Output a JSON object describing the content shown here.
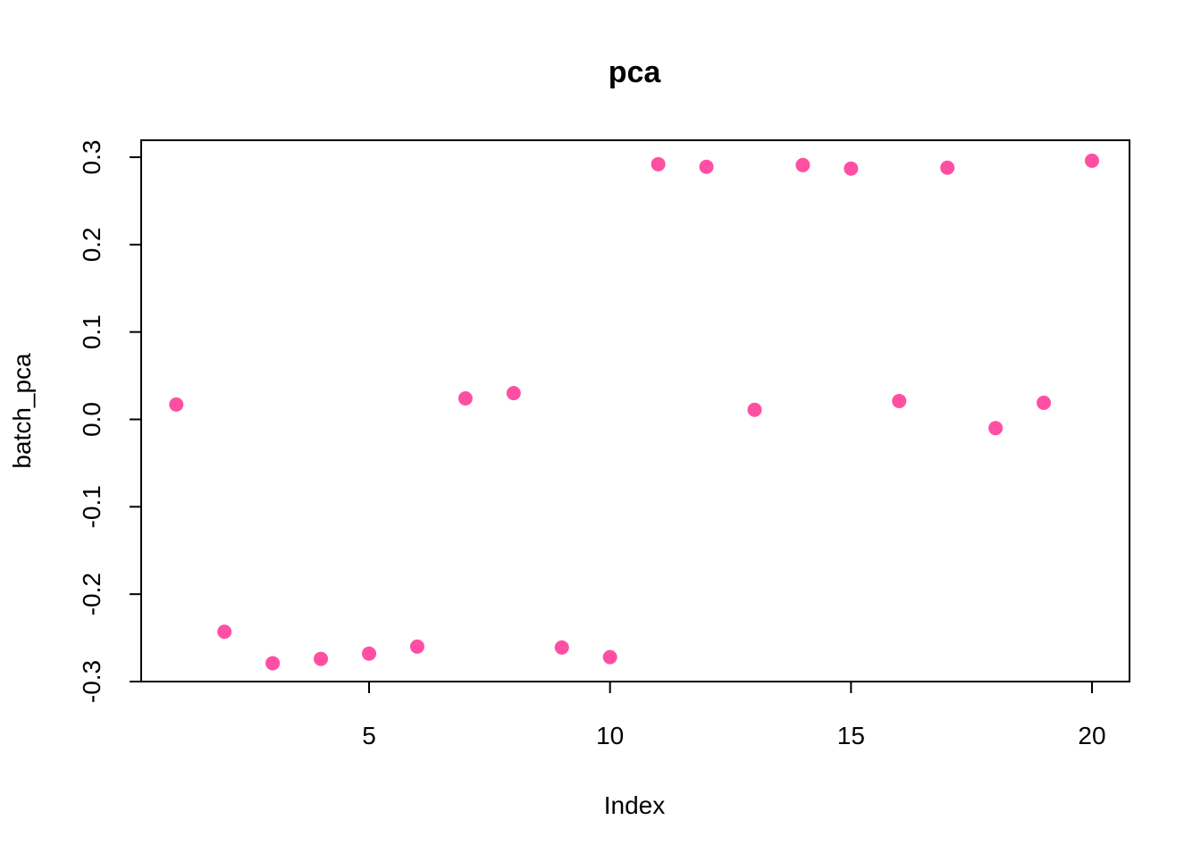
{
  "chart_data": {
    "type": "scatter",
    "title": "pca",
    "xlabel": "Index",
    "ylabel": "batch_pca",
    "xlim": [
      0.25,
      20.75
    ],
    "ylim": [
      -0.3,
      0.32
    ],
    "x_ticks": [
      5,
      10,
      15,
      20
    ],
    "x_tick_labels": [
      "5",
      "10",
      "15",
      "20"
    ],
    "y_ticks": [
      -0.3,
      -0.2,
      -0.1,
      0.0,
      0.1,
      0.2,
      0.3
    ],
    "y_tick_labels": [
      "-0.3",
      "-0.2",
      "-0.1",
      "0.0",
      "0.1",
      "0.2",
      "0.3"
    ],
    "grid": false,
    "legend": "none",
    "point_color": "#FF4FA3",
    "series": [
      {
        "x": [
          1,
          2,
          3,
          4,
          5,
          6,
          7,
          8,
          9,
          10,
          11,
          12,
          13,
          14,
          15,
          16,
          17,
          18,
          19,
          20
        ],
        "y": [
          0.017,
          -0.243,
          -0.279,
          -0.274,
          -0.268,
          -0.26,
          0.024,
          0.03,
          -0.261,
          -0.272,
          0.292,
          0.289,
          0.011,
          0.291,
          0.287,
          0.021,
          0.288,
          -0.01,
          0.019,
          0.296
        ]
      }
    ]
  }
}
